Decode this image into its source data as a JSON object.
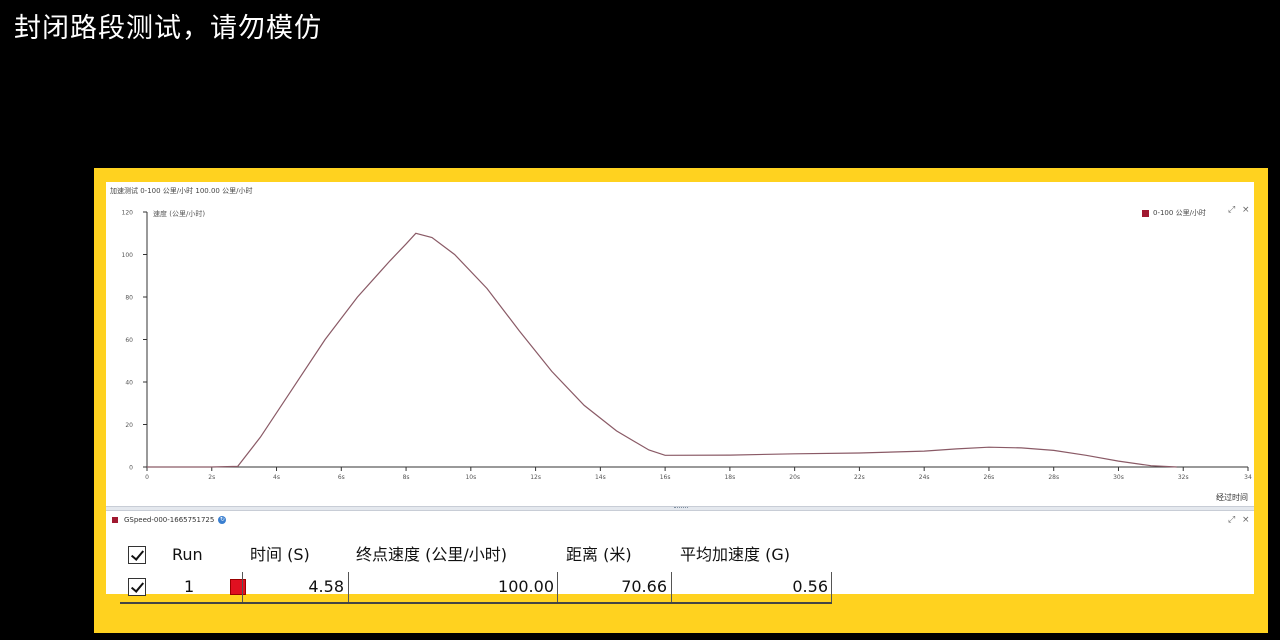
{
  "caption": "封闭路段测试，请勿模仿",
  "chart": {
    "header_text": "加速测试 0-100 公里/小时 100.00 公里/小时",
    "legend_text": "0-100 公里/小时",
    "colors": {
      "line": "#8a5a66",
      "accent": "#a01830"
    }
  },
  "chart_data": {
    "type": "line",
    "title": "",
    "ylabel": "速度 (公里/小时)",
    "xlabel": "经过时间",
    "xlim": [
      0,
      34
    ],
    "ylim": [
      0,
      120
    ],
    "x_ticks": [
      "0",
      "2s",
      "4s",
      "6s",
      "8s",
      "10s",
      "12s",
      "14s",
      "16s",
      "18s",
      "20s",
      "22s",
      "24s",
      "26s",
      "28s",
      "30s",
      "32s",
      "34"
    ],
    "y_ticks": [
      "0",
      "20",
      "40",
      "60",
      "80",
      "100",
      "120"
    ],
    "series": [
      {
        "x": [
          0,
          1,
          2,
          2.8,
          3.5,
          4.5,
          5.5,
          6.5,
          7.5,
          8.0,
          8.3,
          8.8,
          9.5,
          10.5,
          11.5,
          12.5,
          13.5,
          14.5,
          15.5,
          16.0,
          18,
          20,
          22,
          24,
          25,
          26,
          27,
          28,
          29,
          30,
          31,
          31.8
        ],
        "y": [
          0,
          0,
          0,
          0.3,
          14,
          37,
          60,
          80,
          97,
          105,
          110,
          108,
          100,
          84,
          64,
          45,
          29,
          17,
          8,
          5.5,
          5.6,
          6.2,
          6.6,
          7.5,
          8.5,
          9.3,
          9.0,
          7.8,
          5.5,
          2.8,
          0.6,
          0
        ]
      }
    ]
  },
  "series_bar": {
    "label": "GSpeed-000-1665751725"
  },
  "table": {
    "headers": [
      "Run",
      "时间 (S)",
      "终点速度 (公里/小时)",
      "距离 (米)",
      "平均加速度 (G)"
    ],
    "row": {
      "run": "1",
      "time": "4.58",
      "end_speed": "100.00",
      "distance": "70.66",
      "avg_accel": "0.56"
    }
  }
}
